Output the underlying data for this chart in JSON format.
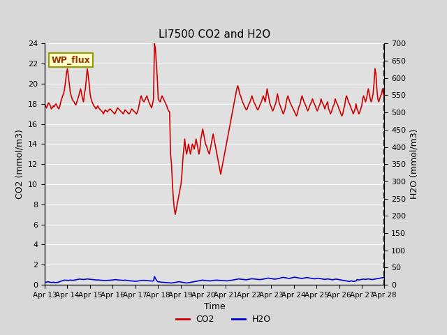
{
  "title": "LI7500 CO2 and H2O",
  "xlabel": "Time",
  "ylabel_left": "CO2 (mmol/m3)",
  "ylabel_right": "H2O (mmol/m3)",
  "ylim_left": [
    0,
    24
  ],
  "ylim_right": [
    0,
    700
  ],
  "yticks_left": [
    0,
    2,
    4,
    6,
    8,
    10,
    12,
    14,
    16,
    18,
    20,
    22,
    24
  ],
  "yticks_right": [
    0,
    50,
    100,
    150,
    200,
    250,
    300,
    350,
    400,
    450,
    500,
    550,
    600,
    650,
    700
  ],
  "background_color": "#e8e8e8",
  "plot_bg_color": "#e0e0e0",
  "co2_color": "#cc0000",
  "h2o_color": "#0000cc",
  "annotation_text": "WP_flux",
  "annotation_bg": "#ffffcc",
  "annotation_border": "#999900",
  "x_tick_labels": [
    "Apr 13",
    "Apr 14",
    "Apr 15",
    "Apr 16",
    "Apr 17",
    "Apr 18",
    "Apr 19",
    "Apr 20",
    "Apr 21",
    "Apr 22",
    "Apr 23",
    "Apr 24",
    "Apr 25",
    "Apr 26",
    "Apr 27",
    "Apr 28"
  ],
  "n_points": 360,
  "co2_data": [
    18.0,
    17.8,
    17.6,
    17.9,
    18.1,
    18.0,
    17.8,
    17.5,
    17.6,
    17.8,
    17.7,
    17.9,
    18.0,
    17.8,
    17.6,
    17.5,
    17.8,
    18.2,
    18.5,
    18.8,
    19.0,
    19.5,
    20.2,
    21.0,
    21.5,
    20.8,
    20.0,
    19.2,
    18.8,
    18.5,
    18.3,
    18.2,
    18.0,
    17.9,
    18.2,
    18.5,
    18.8,
    19.2,
    19.5,
    19.0,
    18.5,
    18.2,
    19.0,
    19.5,
    20.5,
    21.5,
    20.8,
    20.0,
    19.0,
    18.5,
    18.2,
    18.0,
    17.8,
    17.7,
    17.5,
    17.6,
    17.8,
    17.6,
    17.5,
    17.4,
    17.3,
    17.2,
    17.0,
    17.2,
    17.4,
    17.3,
    17.2,
    17.3,
    17.4,
    17.5,
    17.4,
    17.3,
    17.2,
    17.1,
    17.0,
    17.2,
    17.4,
    17.6,
    17.5,
    17.4,
    17.3,
    17.2,
    17.1,
    17.0,
    17.2,
    17.4,
    17.3,
    17.2,
    17.1,
    17.0,
    17.1,
    17.3,
    17.5,
    17.4,
    17.3,
    17.2,
    17.1,
    17.0,
    17.2,
    17.5,
    18.0,
    18.5,
    18.8,
    18.5,
    18.3,
    18.2,
    18.4,
    18.6,
    18.8,
    18.5,
    18.2,
    18.0,
    17.8,
    17.6,
    18.0,
    18.5,
    24.0,
    23.5,
    22.0,
    20.5,
    18.5,
    18.3,
    18.2,
    18.5,
    18.8,
    18.6,
    18.4,
    18.2,
    18.0,
    17.8,
    17.5,
    17.3,
    17.2,
    13.0,
    12.0,
    10.0,
    8.5,
    7.5,
    7.0,
    7.5,
    8.0,
    8.5,
    9.0,
    9.5,
    10.0,
    11.0,
    12.5,
    13.5,
    14.5,
    13.5,
    13.0,
    13.5,
    14.0,
    13.5,
    13.0,
    13.5,
    14.0,
    13.8,
    13.5,
    14.0,
    14.5,
    14.0,
    13.5,
    13.0,
    13.5,
    14.5,
    15.0,
    15.5,
    15.0,
    14.5,
    14.0,
    13.8,
    13.5,
    13.2,
    13.0,
    13.5,
    14.0,
    14.5,
    15.0,
    14.5,
    14.0,
    13.5,
    13.0,
    12.5,
    12.0,
    11.5,
    11.0,
    11.5,
    12.0,
    12.5,
    13.0,
    13.5,
    14.0,
    14.5,
    15.0,
    15.5,
    16.0,
    16.5,
    17.0,
    17.5,
    18.0,
    18.5,
    19.0,
    19.5,
    19.8,
    19.5,
    19.0,
    18.8,
    18.5,
    18.2,
    18.0,
    17.8,
    17.6,
    17.4,
    17.5,
    17.8,
    18.0,
    18.2,
    18.5,
    18.8,
    18.5,
    18.2,
    18.0,
    17.8,
    17.6,
    17.4,
    17.5,
    17.8,
    18.0,
    18.2,
    18.5,
    18.8,
    18.5,
    18.2,
    18.8,
    19.5,
    19.0,
    18.5,
    18.0,
    17.8,
    17.5,
    17.3,
    17.5,
    17.8,
    18.0,
    18.5,
    19.0,
    18.5,
    18.0,
    17.8,
    17.5,
    17.3,
    17.0,
    17.2,
    17.5,
    18.0,
    18.5,
    18.8,
    18.5,
    18.2,
    18.0,
    17.8,
    17.6,
    17.4,
    17.2,
    17.0,
    16.8,
    17.0,
    17.5,
    17.8,
    18.0,
    18.5,
    18.8,
    18.5,
    18.2,
    18.0,
    17.8,
    17.5,
    17.3,
    17.5,
    17.8,
    18.0,
    18.2,
    18.5,
    18.2,
    18.0,
    17.8,
    17.5,
    17.3,
    17.5,
    17.8,
    18.0,
    18.5,
    18.2,
    18.0,
    17.8,
    17.5,
    17.8,
    18.0,
    18.2,
    17.5,
    17.3,
    17.0,
    17.2,
    17.5,
    17.8,
    18.0,
    18.5,
    18.2,
    18.0,
    17.8,
    17.5,
    17.3,
    17.0,
    16.8,
    17.0,
    17.5,
    17.8,
    18.5,
    18.8,
    18.5,
    18.2,
    18.0,
    17.8,
    17.5,
    17.3,
    17.0,
    17.2,
    17.5,
    18.0,
    17.5,
    17.3,
    17.0,
    17.2,
    17.5,
    17.8,
    18.5,
    18.8,
    18.5,
    18.2,
    18.5,
    19.0,
    19.5,
    19.0,
    18.5,
    18.2,
    18.5,
    19.0,
    20.0,
    21.5,
    21.0,
    19.5,
    18.5,
    18.2,
    18.5,
    18.8,
    19.0,
    19.5,
    19.0,
    18.5
  ],
  "h2o_data": [
    6.5,
    7.2,
    7.8,
    8.2,
    8.5,
    7.8,
    7.0,
    6.5,
    6.8,
    7.5,
    7.0,
    6.5,
    6.3,
    7.0,
    7.5,
    8.0,
    9.0,
    10.0,
    11.0,
    12.0,
    13.0,
    13.5,
    13.2,
    13.0,
    12.8,
    12.5,
    13.0,
    13.5,
    13.2,
    13.0,
    12.8,
    13.5,
    14.0,
    14.5,
    15.0,
    15.5,
    16.0,
    16.5,
    16.2,
    15.8,
    15.5,
    15.2,
    15.5,
    16.0,
    16.5,
    16.8,
    16.5,
    16.2,
    15.8,
    15.5,
    15.2,
    15.0,
    14.8,
    14.5,
    14.2,
    13.8,
    14.0,
    13.8,
    13.5,
    13.2,
    13.0,
    12.8,
    12.5,
    12.2,
    12.0,
    12.2,
    12.5,
    12.8,
    13.0,
    13.2,
    13.5,
    13.8,
    14.0,
    14.2,
    14.5,
    14.8,
    14.5,
    14.2,
    13.8,
    13.5,
    13.2,
    13.0,
    12.8,
    12.5,
    13.0,
    13.5,
    13.0,
    12.5,
    12.0,
    11.8,
    11.5,
    11.2,
    11.0,
    10.8,
    10.5,
    10.2,
    10.0,
    10.2,
    10.5,
    11.0,
    11.5,
    12.0,
    12.5,
    12.8,
    13.0,
    12.8,
    12.5,
    12.2,
    12.0,
    11.8,
    11.5,
    11.2,
    11.0,
    10.8,
    11.0,
    11.5,
    24.0,
    18.0,
    14.0,
    10.0,
    8.5,
    8.2,
    8.0,
    7.8,
    7.5,
    7.2,
    7.0,
    6.8,
    6.5,
    6.2,
    6.0,
    5.8,
    5.5,
    5.2,
    5.0,
    5.5,
    6.0,
    6.5,
    7.0,
    7.5,
    8.0,
    8.5,
    9.0,
    8.5,
    8.0,
    7.5,
    7.0,
    6.5,
    6.0,
    5.5,
    5.0,
    5.5,
    6.0,
    6.5,
    7.0,
    7.5,
    8.0,
    8.5,
    9.0,
    9.5,
    10.0,
    10.5,
    11.0,
    11.5,
    12.0,
    12.5,
    13.0,
    13.5,
    13.0,
    12.5,
    12.0,
    11.8,
    11.5,
    11.2,
    11.0,
    11.2,
    11.5,
    12.0,
    12.5,
    12.8,
    13.0,
    13.2,
    13.5,
    13.2,
    13.0,
    12.8,
    12.5,
    12.2,
    12.0,
    11.8,
    11.5,
    11.2,
    11.0,
    11.2,
    11.5,
    12.0,
    12.5,
    13.0,
    13.5,
    14.0,
    14.5,
    15.0,
    15.5,
    16.0,
    16.5,
    16.8,
    16.5,
    16.2,
    15.8,
    15.5,
    15.2,
    15.0,
    14.8,
    14.5,
    15.0,
    15.5,
    16.0,
    16.5,
    17.0,
    17.5,
    17.2,
    16.8,
    16.5,
    16.2,
    15.8,
    15.5,
    15.2,
    15.0,
    15.2,
    15.5,
    16.0,
    16.5,
    17.0,
    17.5,
    18.0,
    19.0,
    19.5,
    19.0,
    18.5,
    18.0,
    17.5,
    17.0,
    16.5,
    16.2,
    16.5,
    17.0,
    17.5,
    18.0,
    18.5,
    19.5,
    20.5,
    21.0,
    21.5,
    21.0,
    20.5,
    20.0,
    19.5,
    19.0,
    18.5,
    18.0,
    19.5,
    20.0,
    20.5,
    21.5,
    22.0,
    21.5,
    21.0,
    20.5,
    20.0,
    19.5,
    19.0,
    18.5,
    18.0,
    19.0,
    19.5,
    20.0,
    20.5,
    21.0,
    20.5,
    20.0,
    19.5,
    19.0,
    18.5,
    18.0,
    17.5,
    17.2,
    17.5,
    18.0,
    18.5,
    19.0,
    18.5,
    18.0,
    17.5,
    17.0,
    16.5,
    16.0,
    15.5,
    16.0,
    16.5,
    17.0,
    16.5,
    16.0,
    15.5,
    15.0,
    14.5,
    15.0,
    15.5,
    16.0,
    16.5,
    16.0,
    15.5,
    15.0,
    14.5,
    14.0,
    13.5,
    13.0,
    12.5,
    12.0,
    11.5,
    11.0,
    10.5,
    10.0,
    9.5,
    10.5,
    11.5,
    10.5,
    9.5,
    10.0,
    10.5,
    11.0,
    15.0,
    14.5,
    14.0,
    14.5,
    15.0,
    15.5,
    16.0,
    16.5,
    16.0,
    15.5,
    16.0,
    16.5,
    17.0,
    16.5,
    16.0,
    15.5,
    15.0,
    15.5,
    16.0,
    16.5,
    17.0,
    17.5,
    18.0,
    18.5,
    19.0,
    19.5,
    20.0,
    20.5,
    21.0,
    20.5
  ]
}
